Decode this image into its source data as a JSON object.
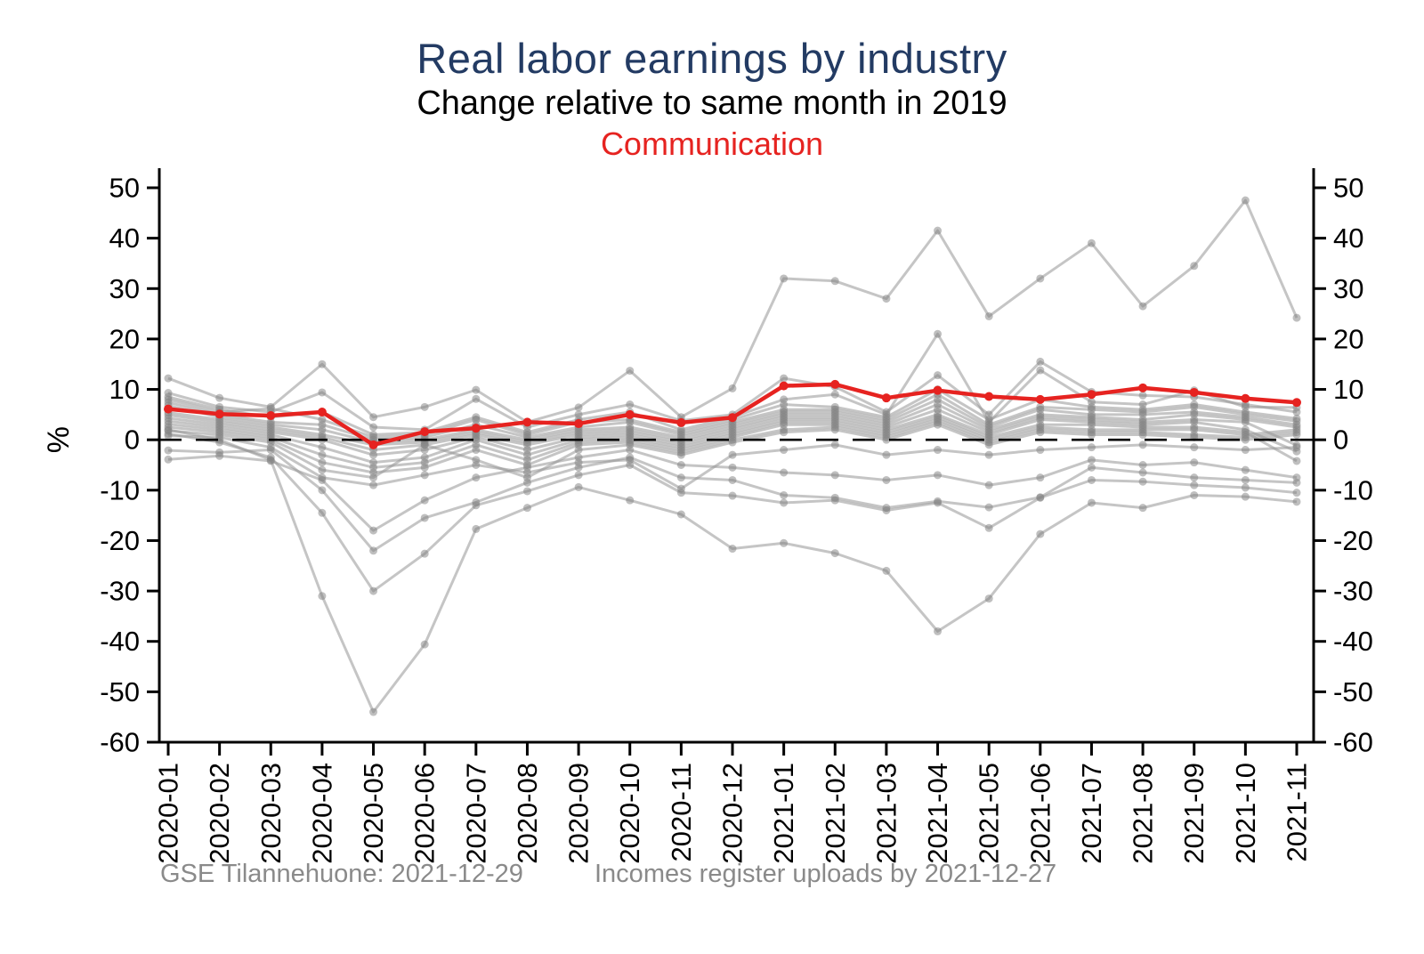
{
  "header": {
    "title": "Real labor earnings by industry",
    "subtitle": "Change relative to same month in 2019",
    "highlight": "Communication"
  },
  "footer": {
    "left": "GSE Tilannehuone: 2021-12-29",
    "right": "Incomes register uploads by 2021-12-27"
  },
  "colors": {
    "title": "#233b63",
    "subtitle": "#000000",
    "highlight": "#e62320",
    "gray_line": "#969696",
    "gray_marker": "#7f7f7f",
    "axis": "#000000",
    "zero_line": "#000000",
    "footer": "#8a8a8a"
  },
  "chart_data": {
    "type": "line",
    "title": "Real labor earnings by industry",
    "subtitle": "Change relative to same month in 2019",
    "highlighted_series_label": "Communication",
    "xlabel": "",
    "ylabel": "%",
    "ylim": [
      -60,
      50
    ],
    "yticks": [
      -60,
      -50,
      -40,
      -30,
      -20,
      -10,
      0,
      10,
      20,
      30,
      40,
      50
    ],
    "grid": false,
    "legend_position": "none",
    "mirrored_right_axis": true,
    "zero_reference_line": "dashed",
    "x": [
      "2020-01",
      "2020-02",
      "2020-03",
      "2020-04",
      "2020-05",
      "2020-06",
      "2020-07",
      "2020-08",
      "2020-09",
      "2020-10",
      "2020-11",
      "2020-12",
      "2021-01",
      "2021-02",
      "2021-03",
      "2021-04",
      "2021-05",
      "2021-06",
      "2021-07",
      "2021-08",
      "2021-09",
      "2021-10",
      "2021-11"
    ],
    "highlight_series": {
      "name": "Communication",
      "values": [
        6.1,
        5.1,
        4.8,
        5.5,
        -1.0,
        1.6,
        2.3,
        3.5,
        3.2,
        5.0,
        3.4,
        4.4,
        10.7,
        11.0,
        8.3,
        9.8,
        8.6,
        8.0,
        9.0,
        10.3,
        9.4,
        8.2,
        7.4
      ]
    },
    "series": [
      {
        "name": "unlabeled-industry-01",
        "values": [
          12.2,
          8.3,
          6.5,
          15.0,
          4.5,
          6.5,
          9.9,
          3.5,
          6.4,
          13.7,
          4.5,
          10.2,
          32.0,
          31.5,
          28.0,
          41.5,
          24.5,
          32.0,
          39.0,
          26.5,
          34.5,
          47.5,
          24.2
        ]
      },
      {
        "name": "unlabeled-industry-02",
        "values": [
          2.0,
          0.0,
          -4.0,
          -31.0,
          -54.0,
          -40.6,
          -17.7,
          -13.5,
          -9.4,
          -12.0,
          -14.8,
          -21.6,
          -20.5,
          -22.5,
          -26.0,
          -38.0,
          -31.5,
          -18.7,
          -12.5,
          -13.5,
          -11.0,
          -11.3,
          -12.3
        ]
      },
      {
        "name": "unlabeled-industry-03",
        "values": [
          1.2,
          -0.5,
          -3.5,
          -14.5,
          -30.0,
          -22.6,
          -13.0,
          -10.2,
          -7.0,
          -5.0,
          -10.5,
          -11.1,
          -12.5,
          -12.0,
          -14.0,
          -12.5,
          -17.5,
          -11.5,
          -8.0,
          -8.3,
          -9.0,
          -9.5,
          -10.5
        ]
      },
      {
        "name": "unlabeled-industry-04",
        "values": [
          -2.1,
          -2.5,
          -2.0,
          -10.0,
          -22.0,
          -15.5,
          -12.4,
          -8.5,
          -5.5,
          -3.5,
          -7.5,
          -8.0,
          -11.0,
          -11.5,
          -13.5,
          -12.2,
          -13.4,
          -11.4,
          -5.5,
          -6.5,
          -7.5,
          -8.0,
          -8.5
        ]
      },
      {
        "name": "unlabeled-industry-05",
        "values": [
          -3.9,
          -3.2,
          -4.2,
          -8.0,
          -18.0,
          -12.0,
          -7.5,
          -5.5,
          -3.5,
          -2.0,
          -5.0,
          -5.5,
          -6.5,
          -7.0,
          -8.0,
          -7.0,
          -9.0,
          -7.5,
          -4.0,
          -5.0,
          -4.5,
          -6.0,
          -7.5
        ]
      },
      {
        "name": "unlabeled-industry-06",
        "values": [
          9.3,
          6.5,
          5.5,
          9.4,
          2.5,
          2.0,
          8.1,
          2.5,
          5.0,
          7.0,
          3.8,
          5.0,
          12.2,
          10.5,
          5.5,
          12.8,
          5.0,
          15.5,
          9.5,
          8.8,
          8.5,
          7.0,
          5.5
        ]
      },
      {
        "name": "unlabeled-industry-07",
        "values": [
          8.5,
          6.0,
          4.5,
          5.5,
          1.0,
          1.5,
          4.5,
          1.5,
          4.0,
          5.5,
          2.0,
          4.5,
          8.0,
          9.0,
          5.0,
          21.0,
          3.5,
          13.8,
          7.5,
          7.0,
          9.8,
          6.5,
          6.4
        ]
      },
      {
        "name": "unlabeled-industry-08",
        "values": [
          8.0,
          5.5,
          6.2,
          4.0,
          0.5,
          1.0,
          4.0,
          1.0,
          3.5,
          4.0,
          1.5,
          4.0,
          7.0,
          6.5,
          4.5,
          10.0,
          4.0,
          8.0,
          6.5,
          6.0,
          7.0,
          5.5,
          4.2
        ]
      },
      {
        "name": "unlabeled-industry-09",
        "values": [
          7.4,
          5.0,
          3.5,
          3.0,
          0.0,
          0.5,
          3.0,
          0.5,
          2.5,
          3.5,
          1.0,
          3.5,
          6.0,
          6.0,
          4.0,
          9.0,
          3.0,
          6.5,
          6.0,
          5.5,
          6.5,
          5.0,
          3.7
        ]
      },
      {
        "name": "unlabeled-industry-10",
        "values": [
          6.8,
          4.5,
          3.0,
          2.0,
          -0.5,
          0.0,
          2.0,
          0.0,
          2.0,
          2.5,
          0.5,
          3.0,
          5.5,
          5.5,
          3.5,
          8.0,
          2.5,
          6.0,
          5.0,
          5.0,
          5.5,
          4.5,
          3.0
        ]
      },
      {
        "name": "unlabeled-industry-11",
        "values": [
          5.4,
          4.0,
          2.5,
          1.0,
          -1.0,
          -0.5,
          1.5,
          -0.5,
          1.5,
          2.0,
          0.0,
          2.5,
          5.0,
          5.0,
          3.0,
          7.0,
          2.0,
          5.0,
          4.5,
          4.0,
          5.0,
          4.0,
          2.5
        ]
      },
      {
        "name": "unlabeled-industry-12",
        "values": [
          4.9,
          3.5,
          2.0,
          0.5,
          -2.0,
          -1.0,
          1.0,
          -1.0,
          1.0,
          1.5,
          -0.5,
          2.0,
          4.5,
          4.5,
          2.5,
          6.0,
          1.5,
          4.5,
          4.0,
          3.5,
          4.0,
          3.5,
          -1.1
        ]
      },
      {
        "name": "unlabeled-industry-13",
        "values": [
          4.3,
          3.0,
          1.5,
          0.0,
          -3.0,
          -2.0,
          0.5,
          -2.0,
          0.5,
          1.0,
          -1.0,
          1.5,
          4.0,
          4.0,
          2.0,
          5.0,
          1.0,
          4.0,
          3.5,
          3.0,
          3.5,
          2.0,
          -2.3
        ]
      },
      {
        "name": "unlabeled-industry-14",
        "values": [
          3.7,
          2.5,
          1.0,
          -1.5,
          -4.5,
          -3.5,
          0.0,
          -3.0,
          0.0,
          0.5,
          -1.5,
          1.0,
          3.5,
          3.5,
          1.5,
          4.5,
          0.5,
          3.0,
          3.0,
          2.5,
          2.5,
          1.5,
          -4.2
        ]
      },
      {
        "name": "unlabeled-industry-15",
        "values": [
          3.1,
          2.0,
          0.5,
          -3.0,
          -5.5,
          -4.5,
          -1.0,
          -4.0,
          -0.5,
          0.0,
          -2.0,
          0.5,
          3.0,
          3.0,
          1.0,
          4.0,
          0.0,
          2.5,
          2.0,
          2.0,
          2.0,
          1.0,
          2.0
        ]
      },
      {
        "name": "unlabeled-industry-16",
        "values": [
          2.5,
          1.5,
          0.0,
          -4.5,
          -6.5,
          -5.5,
          -2.0,
          -5.0,
          -1.0,
          -0.5,
          -2.5,
          0.0,
          2.0,
          2.5,
          0.5,
          3.5,
          -0.5,
          2.0,
          1.5,
          1.5,
          1.0,
          0.5,
          1.5
        ]
      },
      {
        "name": "unlabeled-industry-17",
        "values": [
          1.8,
          1.0,
          -0.5,
          -6.0,
          -7.5,
          -1.0,
          -4.0,
          -7.5,
          -2.0,
          -1.0,
          -3.0,
          -0.5,
          1.5,
          2.0,
          0.0,
          3.0,
          -1.0,
          1.5,
          1.0,
          1.0,
          0.5,
          0.0,
          1.0
        ]
      },
      {
        "name": "unlabeled-industry-18",
        "values": [
          0.8,
          0.5,
          -1.5,
          -7.5,
          -9.0,
          -7.0,
          -5.0,
          -6.5,
          -4.5,
          -4.0,
          -9.7,
          -3.0,
          -2.0,
          -1.0,
          -3.0,
          -2.0,
          -3.0,
          -2.0,
          -1.5,
          -1.0,
          -1.5,
          -2.0,
          -1.5
        ]
      }
    ]
  }
}
